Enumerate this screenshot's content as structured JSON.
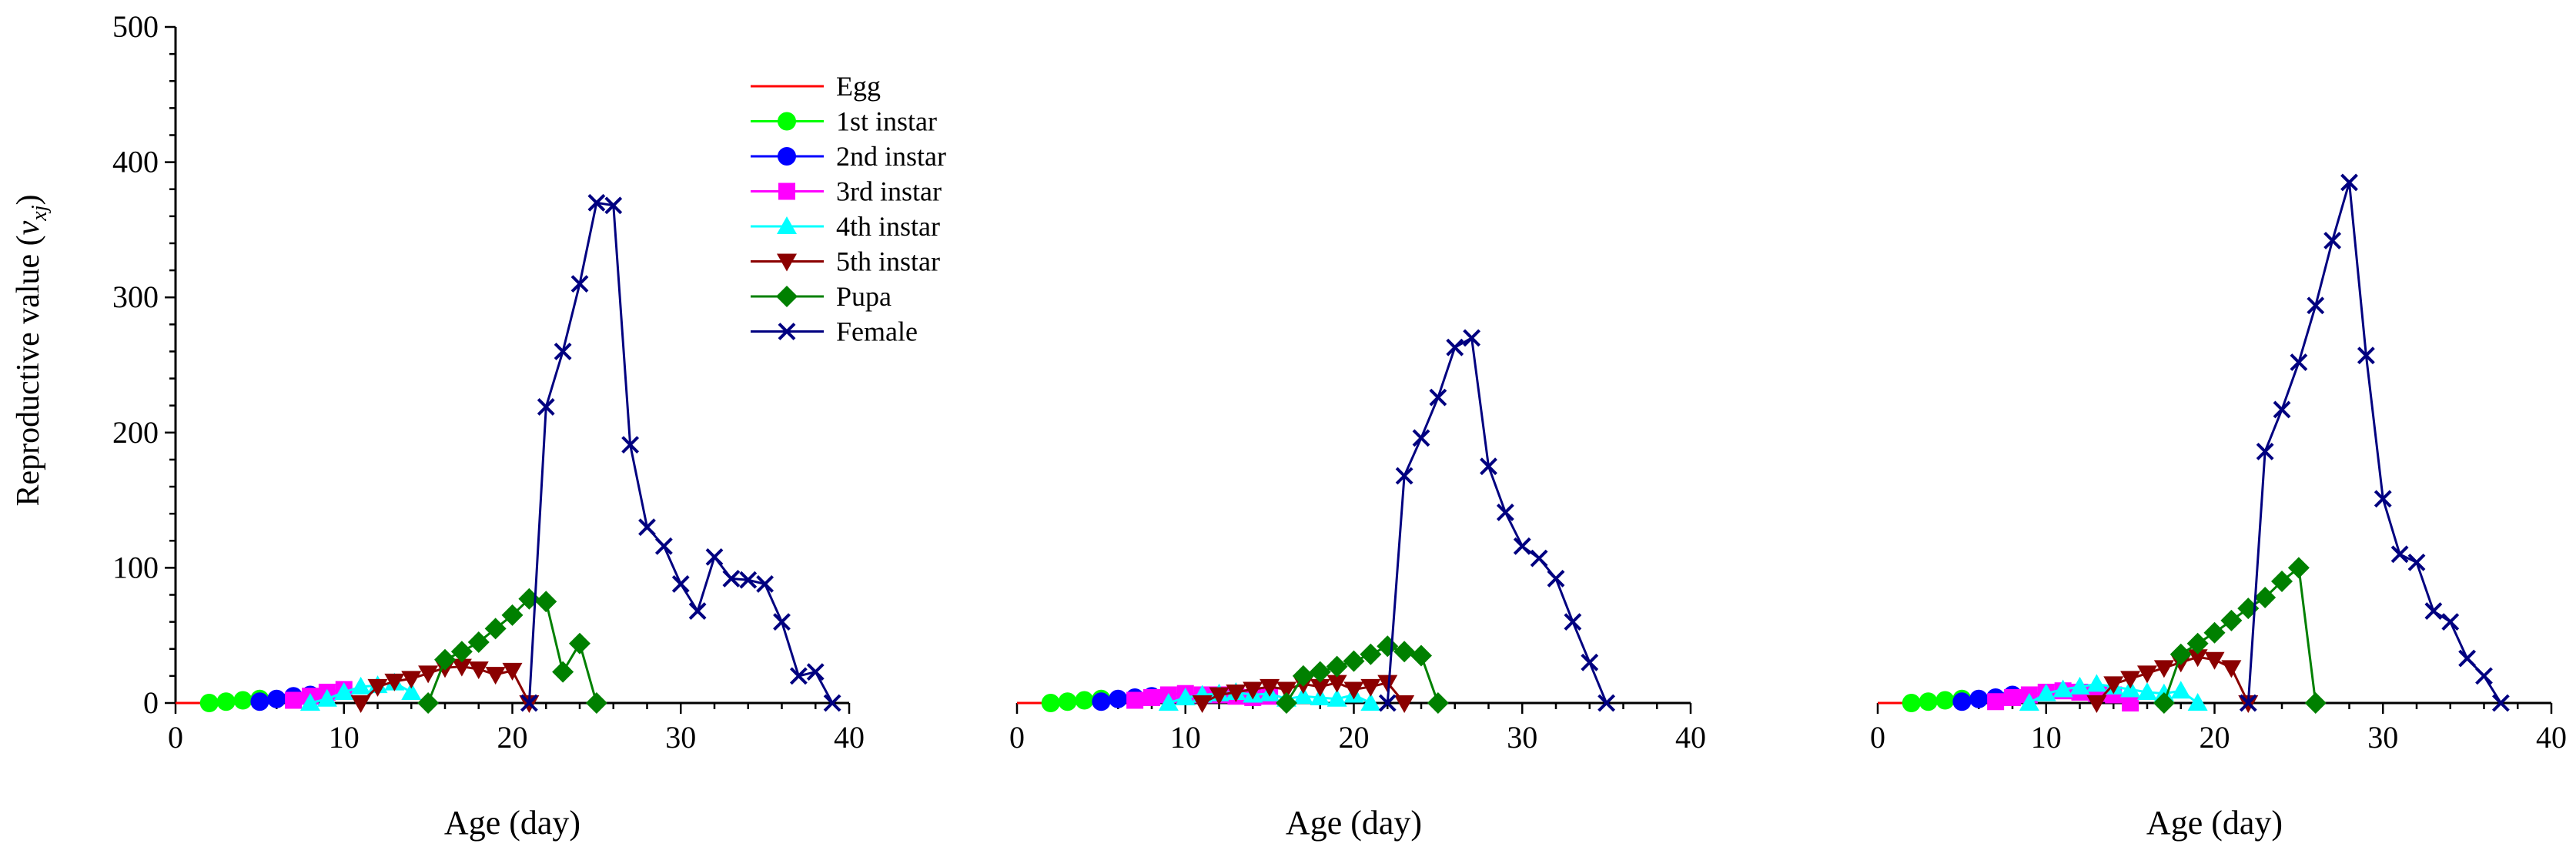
{
  "figure": {
    "ylabel_main": "Reproductive value (",
    "ylabel_var": "v",
    "ylabel_sub": "xj",
    "ylabel_close": ")"
  },
  "legend": [
    {
      "name": "Egg",
      "color": "#ff0000",
      "marker": "none"
    },
    {
      "name": "1st instar",
      "color": "#00ff00",
      "marker": "circle"
    },
    {
      "name": "2nd instar",
      "color": "#0000ff",
      "marker": "circle"
    },
    {
      "name": "3rd instar",
      "color": "#ff00ff",
      "marker": "square"
    },
    {
      "name": "4th instar",
      "color": "#00ffff",
      "marker": "triangle-up"
    },
    {
      "name": "5th instar",
      "color": "#8b0000",
      "marker": "triangle-down"
    },
    {
      "name": "Pupa",
      "color": "#008000",
      "marker": "diamond"
    },
    {
      "name": "Female",
      "color": "#000080",
      "marker": "x"
    }
  ],
  "chart_data": [
    {
      "type": "line",
      "xlabel": "Age (day)",
      "ylabel": "Reproductive value (v_xj)",
      "xlim": [
        0,
        40
      ],
      "ylim": [
        0,
        500
      ],
      "xticks": [
        0,
        10,
        20,
        30,
        40
      ],
      "yticks": [
        0,
        100,
        200,
        300,
        400,
        500
      ],
      "series": [
        {
          "name": "Egg",
          "points": [
            [
              0,
              0
            ],
            [
              1,
              0
            ],
            [
              2,
              0
            ],
            [
              3,
              0
            ]
          ]
        },
        {
          "name": "1st instar",
          "points": [
            [
              2,
              0
            ],
            [
              3,
              1
            ],
            [
              4,
              2
            ],
            [
              5,
              3
            ]
          ]
        },
        {
          "name": "2nd instar",
          "points": [
            [
              5,
              1
            ],
            [
              6,
              3
            ],
            [
              7,
              5
            ],
            [
              8,
              6
            ]
          ]
        },
        {
          "name": "3rd instar",
          "points": [
            [
              7,
              2
            ],
            [
              8,
              5
            ],
            [
              9,
              8
            ],
            [
              10,
              10
            ]
          ]
        },
        {
          "name": "4th instar",
          "points": [
            [
              8,
              0
            ],
            [
              9,
              3
            ],
            [
              10,
              8
            ],
            [
              11,
              12
            ],
            [
              12,
              13
            ],
            [
              13,
              15
            ],
            [
              14,
              8
            ]
          ]
        },
        {
          "name": "5th instar",
          "points": [
            [
              11,
              0
            ],
            [
              12,
              12
            ],
            [
              13,
              16
            ],
            [
              14,
              18
            ],
            [
              15,
              22
            ],
            [
              16,
              26
            ],
            [
              17,
              27
            ],
            [
              18,
              25
            ],
            [
              19,
              21
            ],
            [
              20,
              24
            ],
            [
              21,
              0
            ]
          ]
        },
        {
          "name": "Pupa",
          "points": [
            [
              15,
              0
            ],
            [
              16,
              32
            ],
            [
              17,
              38
            ],
            [
              18,
              45
            ],
            [
              19,
              55
            ],
            [
              20,
              65
            ],
            [
              21,
              77
            ],
            [
              22,
              75
            ],
            [
              23,
              23
            ],
            [
              24,
              44
            ],
            [
              25,
              0
            ]
          ]
        },
        {
          "name": "Female",
          "points": [
            [
              21,
              0
            ],
            [
              22,
              219
            ],
            [
              23,
              260
            ],
            [
              24,
              310
            ],
            [
              25,
              370
            ],
            [
              26,
              368
            ],
            [
              27,
              191
            ],
            [
              28,
              130
            ],
            [
              29,
              116
            ],
            [
              30,
              88
            ],
            [
              31,
              68
            ],
            [
              32,
              108
            ],
            [
              33,
              92
            ],
            [
              34,
              91
            ],
            [
              35,
              88
            ],
            [
              36,
              60
            ],
            [
              37,
              20
            ],
            [
              38,
              23
            ],
            [
              39,
              0
            ]
          ]
        }
      ]
    },
    {
      "type": "line",
      "xlabel": "Age (day)",
      "ylabel": "",
      "xlim": [
        0,
        40
      ],
      "ylim": [
        0,
        500
      ],
      "xticks": [
        0,
        10,
        20,
        30,
        40
      ],
      "yticks": [],
      "series": [
        {
          "name": "Egg",
          "points": [
            [
              0,
              0
            ],
            [
              1,
              0
            ],
            [
              2,
              0
            ],
            [
              3,
              0
            ]
          ]
        },
        {
          "name": "1st instar",
          "points": [
            [
              2,
              0
            ],
            [
              3,
              1
            ],
            [
              4,
              2
            ],
            [
              5,
              3
            ]
          ]
        },
        {
          "name": "2nd instar",
          "points": [
            [
              5,
              1
            ],
            [
              6,
              3
            ],
            [
              7,
              4
            ],
            [
              8,
              5
            ]
          ]
        },
        {
          "name": "3rd instar",
          "points": [
            [
              7,
              2
            ],
            [
              8,
              4
            ],
            [
              9,
              6
            ],
            [
              10,
              7
            ],
            [
              11,
              6
            ],
            [
              12,
              6
            ],
            [
              13,
              5
            ],
            [
              14,
              4
            ],
            [
              15,
              5
            ]
          ]
        },
        {
          "name": "4th instar",
          "points": [
            [
              9,
              0
            ],
            [
              10,
              4
            ],
            [
              11,
              6
            ],
            [
              12,
              7
            ],
            [
              13,
              8
            ],
            [
              14,
              6
            ],
            [
              15,
              7
            ],
            [
              16,
              3
            ],
            [
              17,
              5
            ],
            [
              18,
              4
            ],
            [
              19,
              3
            ],
            [
              20,
              6
            ],
            [
              21,
              0
            ]
          ]
        },
        {
          "name": "5th instar",
          "points": [
            [
              11,
              0
            ],
            [
              12,
              6
            ],
            [
              13,
              8
            ],
            [
              14,
              10
            ],
            [
              15,
              12
            ],
            [
              16,
              10
            ],
            [
              17,
              14
            ],
            [
              18,
              12
            ],
            [
              19,
              15
            ],
            [
              20,
              10
            ],
            [
              21,
              12
            ],
            [
              22,
              15
            ],
            [
              23,
              0
            ]
          ]
        },
        {
          "name": "Pupa",
          "points": [
            [
              16,
              0
            ],
            [
              17,
              20
            ],
            [
              18,
              23
            ],
            [
              19,
              27
            ],
            [
              20,
              31
            ],
            [
              21,
              36
            ],
            [
              22,
              42
            ],
            [
              23,
              38
            ],
            [
              24,
              35
            ],
            [
              25,
              0
            ]
          ]
        },
        {
          "name": "Female",
          "points": [
            [
              22,
              0
            ],
            [
              23,
              168
            ],
            [
              24,
              196
            ],
            [
              25,
              226
            ],
            [
              26,
              263
            ],
            [
              27,
              270
            ],
            [
              28,
              175
            ],
            [
              29,
              141
            ],
            [
              30,
              116
            ],
            [
              31,
              107
            ],
            [
              32,
              92
            ],
            [
              33,
              60
            ],
            [
              34,
              30
            ],
            [
              35,
              0
            ]
          ]
        }
      ]
    },
    {
      "type": "line",
      "xlabel": "Age (day)",
      "ylabel": "",
      "xlim": [
        0,
        40
      ],
      "ylim": [
        0,
        500
      ],
      "xticks": [
        0,
        10,
        20,
        30,
        40
      ],
      "yticks": [],
      "series": [
        {
          "name": "Egg",
          "points": [
            [
              0,
              0
            ],
            [
              1,
              0
            ],
            [
              2,
              0
            ],
            [
              3,
              0
            ]
          ]
        },
        {
          "name": "1st instar",
          "points": [
            [
              2,
              0
            ],
            [
              3,
              1
            ],
            [
              4,
              2
            ],
            [
              5,
              3
            ]
          ]
        },
        {
          "name": "2nd instar",
          "points": [
            [
              5,
              1
            ],
            [
              6,
              3
            ],
            [
              7,
              4
            ],
            [
              8,
              6
            ]
          ]
        },
        {
          "name": "3rd instar",
          "points": [
            [
              7,
              1
            ],
            [
              8,
              4
            ],
            [
              9,
              6
            ],
            [
              10,
              8
            ],
            [
              11,
              9
            ],
            [
              12,
              8
            ],
            [
              13,
              7
            ],
            [
              14,
              6
            ],
            [
              15,
              0
            ]
          ]
        },
        {
          "name": "4th instar",
          "points": [
            [
              9,
              0
            ],
            [
              10,
              7
            ],
            [
              11,
              10
            ],
            [
              12,
              12
            ],
            [
              13,
              14
            ],
            [
              14,
              12
            ],
            [
              15,
              10
            ],
            [
              16,
              8
            ],
            [
              17,
              7
            ],
            [
              18,
              9
            ],
            [
              19,
              0
            ]
          ]
        },
        {
          "name": "5th instar",
          "points": [
            [
              13,
              0
            ],
            [
              14,
              14
            ],
            [
              15,
              18
            ],
            [
              16,
              22
            ],
            [
              17,
              26
            ],
            [
              18,
              30
            ],
            [
              19,
              34
            ],
            [
              20,
              32
            ],
            [
              21,
              26
            ],
            [
              22,
              0
            ]
          ]
        },
        {
          "name": "Pupa",
          "points": [
            [
              17,
              0
            ],
            [
              18,
              36
            ],
            [
              19,
              44
            ],
            [
              20,
              52
            ],
            [
              21,
              61
            ],
            [
              22,
              70
            ],
            [
              23,
              78
            ],
            [
              24,
              90
            ],
            [
              25,
              100
            ],
            [
              26,
              0
            ]
          ]
        },
        {
          "name": "Female",
          "points": [
            [
              22,
              0
            ],
            [
              23,
              186
            ],
            [
              24,
              217
            ],
            [
              25,
              252
            ],
            [
              26,
              294
            ],
            [
              27,
              342
            ],
            [
              28,
              385
            ],
            [
              29,
              257
            ],
            [
              30,
              151
            ],
            [
              31,
              110
            ],
            [
              32,
              104
            ],
            [
              33,
              68
            ],
            [
              34,
              60
            ],
            [
              35,
              33
            ],
            [
              36,
              20
            ],
            [
              37,
              0
            ]
          ]
        }
      ]
    }
  ]
}
